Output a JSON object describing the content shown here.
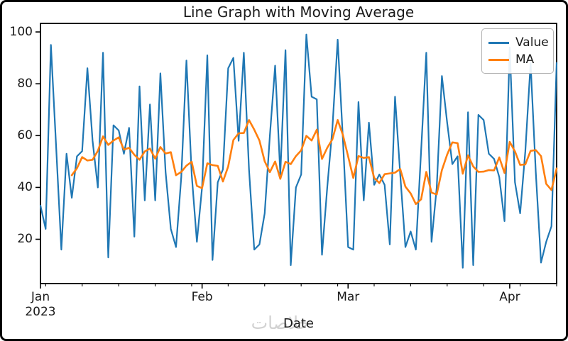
{
  "figure": {
    "title": "Line Graph with Moving Average",
    "xlabel": "Date",
    "watermark": "خلاصات",
    "background_color": "#ffffff",
    "border_color": "#000000",
    "text_color": "#1a1a1a"
  },
  "legend": {
    "position": "upper right",
    "items": [
      {
        "label": "Value",
        "color": "#1f77b4"
      },
      {
        "label": "MA",
        "color": "#ff7f0e"
      }
    ]
  },
  "chart_data": {
    "type": "line",
    "title": "Line Graph with Moving Average",
    "xlabel": "Date",
    "ylabel": "",
    "grid": false,
    "legend_position": "upper right",
    "x_start_date": "2023-01-01",
    "x_end_date": "2023-04-10",
    "n_points": 100,
    "ylim": [
      2.9,
      103.3
    ],
    "y_ticks": [
      20,
      40,
      60,
      80,
      100
    ],
    "x_major_ticks": [
      {
        "label": "Jan",
        "sublabel": "2023",
        "day": 0
      },
      {
        "label": "Feb",
        "sublabel": "",
        "day": 31
      },
      {
        "label": "Mar",
        "sublabel": "",
        "day": 59
      },
      {
        "label": "Apr",
        "sublabel": "",
        "day": 90
      }
    ],
    "x_minor_tick_days": [
      1,
      8,
      15,
      22,
      29,
      36,
      43,
      50,
      57,
      64,
      71,
      78,
      85,
      92,
      99
    ],
    "series": [
      {
        "name": "Value",
        "color": "#1f77b4",
        "line_width": 2.2,
        "start_index": 0,
        "values": [
          33,
          24,
          95,
          56,
          16,
          53,
          36,
          52,
          54,
          86,
          58,
          40,
          92,
          13,
          64,
          62,
          53,
          63,
          21,
          79,
          35,
          72,
          35,
          84,
          46,
          24,
          17,
          44,
          89,
          45,
          19,
          40,
          91,
          12,
          42,
          47,
          86,
          90,
          58,
          92,
          47,
          16,
          18,
          30,
          60,
          87,
          45,
          93,
          10,
          40,
          45,
          99,
          75,
          74,
          14,
          40,
          63,
          97,
          59,
          17,
          16,
          73,
          35,
          65,
          41,
          45,
          41,
          18,
          75,
          45,
          17,
          23,
          16,
          54,
          92,
          19,
          40,
          83,
          65,
          49,
          52,
          9,
          69,
          10,
          68,
          66,
          53,
          51,
          44,
          27,
          94,
          42,
          30,
          54,
          88,
          46,
          11,
          19,
          25,
          88
        ]
      },
      {
        "name": "MA",
        "color": "#ff7f0e",
        "line_width": 2.6,
        "start_index": 6,
        "window": 7,
        "values": [
          44.7,
          47.4,
          51.7,
          50.4,
          50.7,
          54.1,
          59.7,
          56.4,
          58.1,
          59.3,
          54.6,
          55.3,
          52.6,
          50.7,
          53.9,
          55.0,
          51.1,
          55.6,
          53.1,
          53.6,
          44.7,
          46.0,
          48.4,
          49.9,
          40.6,
          39.7,
          49.3,
          48.6,
          48.3,
          42.3,
          48.1,
          58.3,
          60.9,
          61.0,
          66.0,
          62.3,
          58.1,
          50.1,
          45.9,
          50.0,
          43.3,
          49.9,
          49.0,
          52.1,
          54.3,
          59.9,
          58.1,
          62.3,
          51.0,
          55.3,
          58.6,
          66.0,
          60.3,
          52.0,
          43.7,
          52.1,
          51.4,
          51.7,
          43.7,
          41.7,
          45.1,
          45.4,
          45.7,
          47.1,
          40.3,
          37.7,
          33.6,
          35.4,
          46.0,
          38.0,
          37.3,
          46.7,
          52.7,
          57.4,
          57.1,
          45.3,
          52.4,
          48.1,
          46.0,
          46.1,
          46.7,
          46.6,
          51.6,
          45.6,
          57.6,
          53.9,
          48.7,
          48.9,
          54.1,
          54.4,
          52.1,
          41.4,
          39.0,
          47.3
        ]
      }
    ]
  }
}
